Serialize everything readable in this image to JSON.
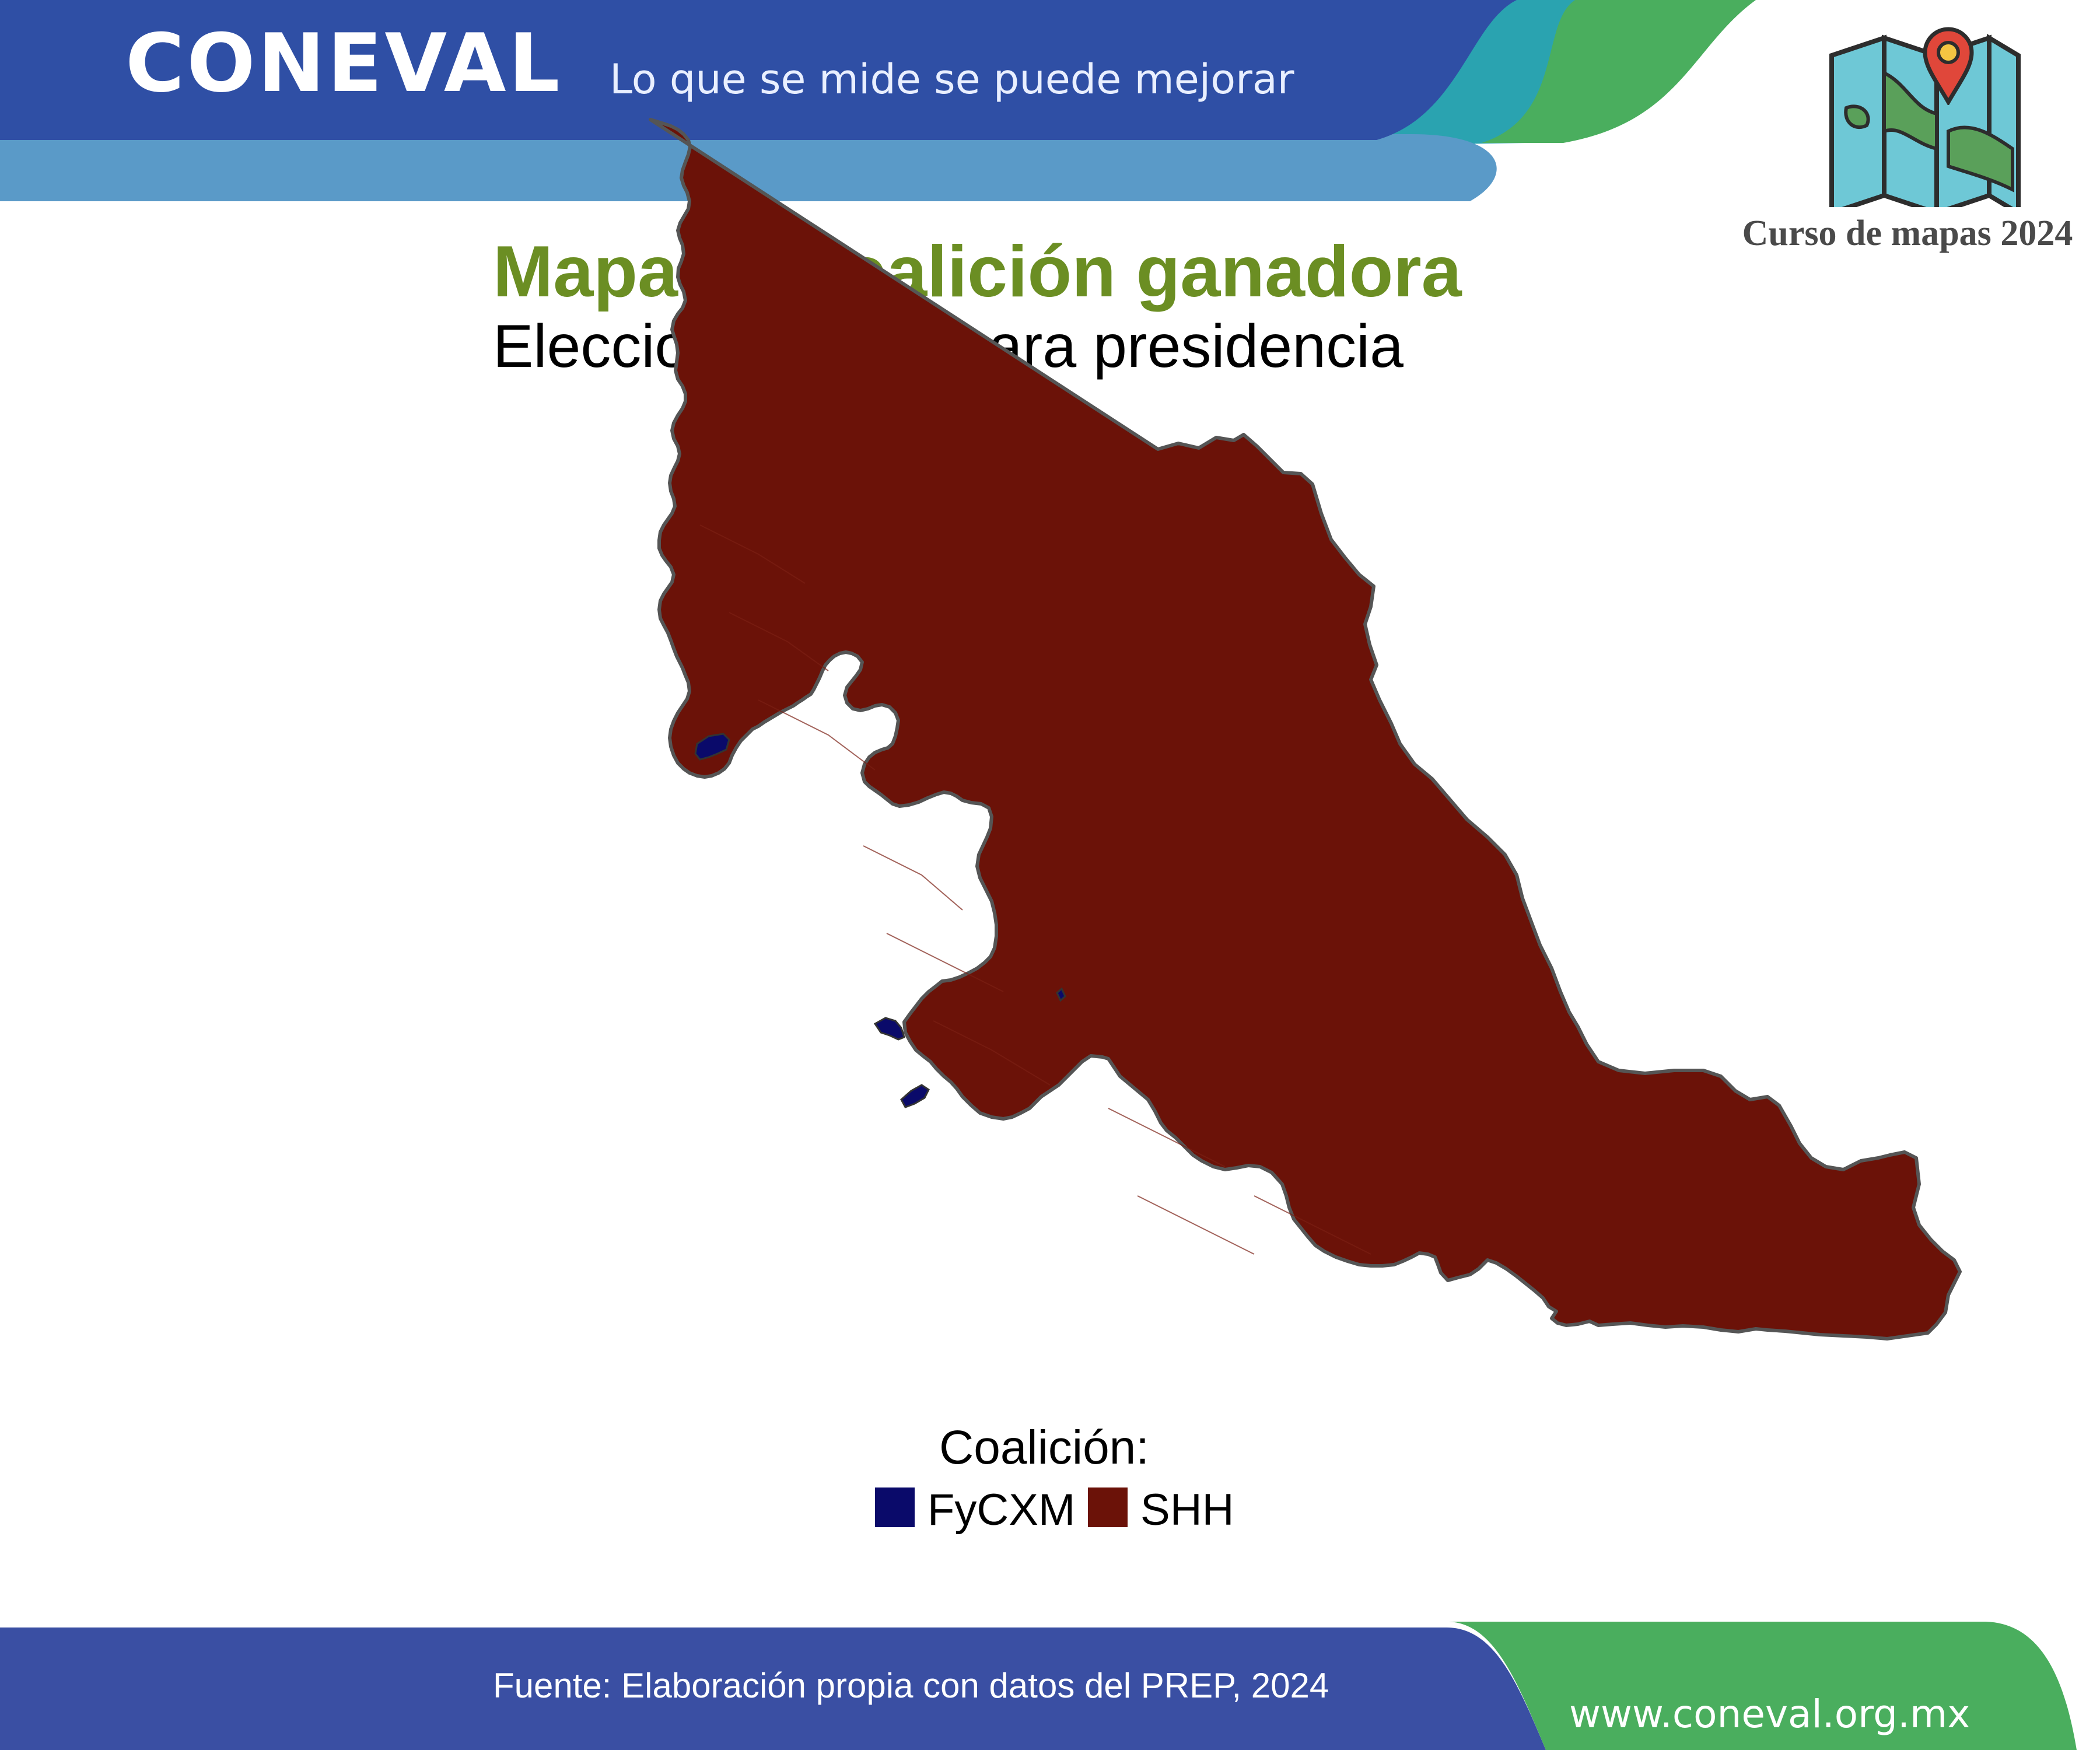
{
  "header": {
    "logo_text": "CONEVAL",
    "slogan": "Lo que se mide se puede mejorar",
    "course_label": "Curso de mapas 2024"
  },
  "map": {
    "title": "Mapa de coalición ganadora",
    "subtitle": "Elecciones 2024 para presidencia",
    "legend": {
      "title": "Coalición:",
      "items": [
        {
          "label": "FyCXM",
          "color": "#0a0a6a"
        },
        {
          "label": "SHH",
          "color": "#6b1208"
        }
      ]
    },
    "boundary_color": "#555555"
  },
  "footer": {
    "source": "Fuente: Elaboración propia con datos del PREP, 2024",
    "website": "www.coneval.org.mx"
  },
  "colors": {
    "header_blue": "#2f4fa5",
    "header_light_blue": "#5a9ac8",
    "accent_green": "#4aa25a",
    "title_green": "#6b8e23"
  },
  "icons": [
    "folded-map-icon",
    "location-pin-icon"
  ]
}
